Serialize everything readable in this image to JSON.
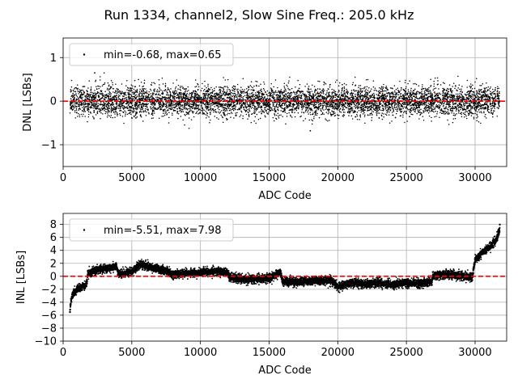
{
  "figure": {
    "title": "Run 1334, channel2, Slow Sine Freq.: 205.0 kHz"
  },
  "chart_data": [
    {
      "type": "scatter",
      "id": "dnl",
      "xlabel": "ADC Code",
      "ylabel": "DNL [LSBs]",
      "xlim": [
        0,
        32300
      ],
      "ylim": [
        -1.5,
        1.45
      ],
      "xticks": [
        0,
        5000,
        10000,
        15000,
        20000,
        25000,
        30000
      ],
      "yticks": [
        -1,
        0,
        1
      ],
      "grid": true,
      "legend_position": "upper left",
      "series": [
        {
          "name": "min=-0.68, max=0.65",
          "color": "#000000",
          "marker": "point",
          "x_range": [
            500,
            31800
          ],
          "band_center": 0.0,
          "typical_spread": [
            -0.3,
            0.3
          ],
          "min": -0.68,
          "max": 0.65
        }
      ],
      "reference_line": {
        "y": 0,
        "color": "#ff0000",
        "style": "dashed"
      }
    },
    {
      "type": "scatter",
      "id": "inl",
      "xlabel": "ADC Code",
      "ylabel": "INL [LSBs]",
      "xlim": [
        0,
        32300
      ],
      "ylim": [
        -10,
        9.7
      ],
      "xticks": [
        0,
        5000,
        10000,
        15000,
        20000,
        25000,
        30000
      ],
      "yticks": [
        -10,
        -8,
        -6,
        -4,
        -2,
        0,
        2,
        4,
        6,
        8
      ],
      "grid": true,
      "legend_position": "upper left",
      "series": [
        {
          "name": "min=-5.51, max=7.98",
          "color": "#000000",
          "marker": "point",
          "min": -5.51,
          "max": 7.98,
          "trend": [
            [
              500,
              -5.0
            ],
            [
              600,
              -3.4
            ],
            [
              800,
              -2.5
            ],
            [
              1200,
              -1.8
            ],
            [
              1700,
              -1.3
            ],
            [
              1800,
              0.4
            ],
            [
              2500,
              1.0
            ],
            [
              3500,
              1.3
            ],
            [
              3900,
              1.6
            ],
            [
              4000,
              0.3
            ],
            [
              5000,
              0.7
            ],
            [
              5600,
              1.8
            ],
            [
              6500,
              1.3
            ],
            [
              7500,
              0.9
            ],
            [
              8000,
              0.3
            ],
            [
              9500,
              0.5
            ],
            [
              11000,
              0.8
            ],
            [
              12000,
              0.5
            ],
            [
              12100,
              -0.2
            ],
            [
              13500,
              -0.5
            ],
            [
              15000,
              -0.3
            ],
            [
              15800,
              0.6
            ],
            [
              16000,
              -0.8
            ],
            [
              17000,
              -0.9
            ],
            [
              18000,
              -0.7
            ],
            [
              19500,
              -0.6
            ],
            [
              20000,
              -1.6
            ],
            [
              21000,
              -1.0
            ],
            [
              22000,
              -1.2
            ],
            [
              23000,
              -1.0
            ],
            [
              24000,
              -1.3
            ],
            [
              25000,
              -1.0
            ],
            [
              26000,
              -1.1
            ],
            [
              26800,
              -0.8
            ],
            [
              27000,
              0.1
            ],
            [
              28000,
              0.3
            ],
            [
              29000,
              0.1
            ],
            [
              29800,
              -0.1
            ],
            [
              30000,
              2.5
            ],
            [
              30500,
              3.6
            ],
            [
              31000,
              4.5
            ],
            [
              31500,
              5.5
            ],
            [
              31800,
              7.2
            ]
          ]
        }
      ],
      "reference_line": {
        "y": 0,
        "color": "#ff0000",
        "style": "dashed"
      }
    }
  ]
}
